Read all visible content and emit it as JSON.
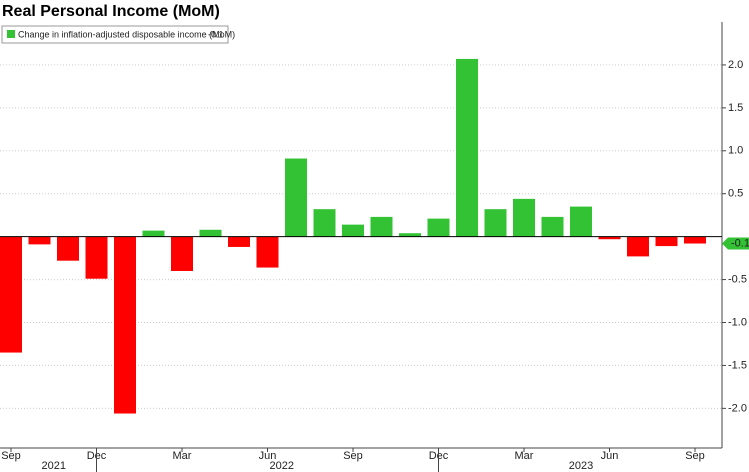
{
  "chart_data": {
    "type": "bar",
    "title": "Real Personal Income (MoM)",
    "categories": [
      "Sep",
      null,
      null,
      "Dec",
      null,
      null,
      "Mar",
      null,
      null,
      "Jun",
      null,
      null,
      "Sep",
      null,
      null,
      "Dec",
      null,
      null,
      "Mar",
      null,
      null,
      "Jun",
      null,
      null,
      "Sep"
    ],
    "years": [
      {
        "label": "2021",
        "from": 0,
        "to": 3
      },
      {
        "label": "2022",
        "from": 4,
        "to": 15
      },
      {
        "label": "2023",
        "from": 16,
        "to": 24
      }
    ],
    "series": [
      {
        "name": "Change in inflation-adjusted disposable income (MoM)",
        "color": "#33c233",
        "negative_color": "#ff0000",
        "values": [
          -1.35,
          -0.09,
          -0.28,
          -0.49,
          -2.06,
          0.07,
          -0.4,
          0.08,
          -0.12,
          -0.36,
          0.91,
          0.32,
          0.14,
          0.23,
          0.04,
          0.21,
          2.07,
          0.32,
          0.44,
          0.23,
          0.35,
          -0.03,
          -0.23,
          -0.11,
          -0.08
        ],
        "value_labels": [
          null,
          null,
          null,
          null,
          null,
          null,
          null,
          null,
          null,
          null,
          null,
          null,
          null,
          null,
          null,
          null,
          null,
          null,
          null,
          null,
          null,
          null,
          null,
          null,
          "-0.1"
        ]
      }
    ],
    "ylim": [
      -2.45,
      2.5
    ],
    "yticks": [
      {
        "value": -2,
        "label": "-2.0"
      },
      -1.5,
      {
        "value": -1,
        "label": "-1.0"
      },
      -0.5,
      0.5,
      {
        "value": 1,
        "label": "1.0"
      },
      1.5,
      {
        "value": 2,
        "label": "2.0"
      }
    ],
    "grid": true
  }
}
